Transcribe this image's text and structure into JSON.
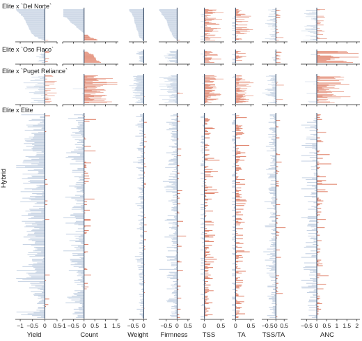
{
  "chart_data": {
    "type": "bar",
    "orientation": "horizontal",
    "ylabel": "Hybrid",
    "colors": {
      "negative": "#c5d2e3",
      "positive": "#e0826a",
      "zero_line": "#2a3f5c",
      "axis": "#222222"
    },
    "panels": [
      {
        "key": "del_norte",
        "label": "Elite x `Del Norte`",
        "n_rows": 60
      },
      {
        "key": "oso_flaco",
        "label": "Elite x `Oso Flaco`",
        "n_rows": 18
      },
      {
        "key": "puget",
        "label": "Elite x `Puget Reliance`",
        "n_rows": 50
      },
      {
        "key": "elite",
        "label": "Elite x Elite",
        "n_rows": 220
      }
    ],
    "traits": [
      {
        "name": "Yield",
        "xlim": [
          -1.2,
          0.5
        ],
        "ticks": [
          -1,
          -0.5,
          0,
          0.5
        ],
        "tick_labels": [
          "−1",
          "−0.5",
          "0",
          "0.5"
        ]
      },
      {
        "name": "Count",
        "xlim": [
          -1.0,
          1.6
        ],
        "ticks": [
          -1,
          -0.5,
          0,
          0.5,
          1,
          1.5
        ],
        "tick_labels": [
          "−1",
          "−0.5",
          "0",
          "0.5",
          "1",
          "1.5"
        ]
      },
      {
        "name": "Weight",
        "xlim": [
          -0.7,
          0.15
        ],
        "ticks": [
          -0.5,
          0
        ],
        "tick_labels": [
          "−0.5",
          "0"
        ]
      },
      {
        "name": "Firmness",
        "xlim": [
          -0.85,
          0.6
        ],
        "ticks": [
          -0.5,
          0,
          0.5
        ],
        "tick_labels": [
          "−0.5",
          "0",
          "0.5"
        ]
      },
      {
        "name": "TSS",
        "xlim": [
          -0.12,
          0.6
        ],
        "ticks": [
          0,
          0.5
        ],
        "tick_labels": [
          "0",
          "0.5"
        ]
      },
      {
        "name": "TA",
        "xlim": [
          -0.12,
          0.6
        ],
        "ticks": [
          0,
          0.5
        ],
        "tick_labels": [
          "0",
          "0.5"
        ]
      },
      {
        "name": "TSS/TA",
        "xlim": [
          -0.85,
          0.7
        ],
        "ticks": [
          -0.5,
          0,
          0.5
        ],
        "tick_labels": [
          "−0.5",
          "0",
          "0.5"
        ]
      },
      {
        "name": "ANC",
        "xlim": [
          -0.8,
          2.15
        ],
        "ticks": [
          -0.5,
          0,
          0.5,
          1,
          1.5,
          2
        ],
        "tick_labels": [
          "−0.5",
          "0",
          "0.5",
          "1",
          "1.5",
          "2"
        ]
      }
    ],
    "profiles": {
      "del_norte": [
        {
          "mean": -0.75,
          "sd": 0.3,
          "sort": true
        },
        {
          "mean": -0.5,
          "sd": 0.55,
          "sort": true,
          "skew": 0.55
        },
        {
          "mean": -0.4,
          "sd": 0.15,
          "sort": true
        },
        {
          "mean": -0.45,
          "sd": 0.22,
          "sort": true
        },
        {
          "mean": 0.22,
          "sd": 0.2
        },
        {
          "mean": 0.12,
          "sd": 0.22
        },
        {
          "mean": -0.05,
          "sd": 0.3
        },
        {
          "mean": -0.2,
          "sd": 0.3
        }
      ],
      "oso_flaco": [
        {
          "mean": -0.05,
          "sd": 0.15
        },
        {
          "mean": 0.3,
          "sd": 0.35,
          "sort": true,
          "skew": 0.3
        },
        {
          "mean": -0.2,
          "sd": 0.1
        },
        {
          "mean": -0.25,
          "sd": 0.15
        },
        {
          "mean": 0.15,
          "sd": 0.15
        },
        {
          "mean": 0.05,
          "sd": 0.15
        },
        {
          "mean": 0.05,
          "sd": 0.2
        },
        {
          "mean": 0.9,
          "sd": 0.6
        }
      ],
      "puget": [
        {
          "mean": -0.15,
          "sd": 0.4
        },
        {
          "mean": 0.55,
          "sd": 0.45
        },
        {
          "mean": -0.35,
          "sd": 0.15
        },
        {
          "mean": -0.3,
          "sd": 0.25
        },
        {
          "mean": 0.18,
          "sd": 0.18
        },
        {
          "mean": 0.18,
          "sd": 0.18
        },
        {
          "mean": -0.2,
          "sd": 0.3
        },
        {
          "mean": 0.5,
          "sd": 0.45
        }
      ],
      "elite": [
        {
          "mean": -0.45,
          "sd": 0.3
        },
        {
          "mean": -0.3,
          "sd": 0.3
        },
        {
          "mean": -0.1,
          "sd": 0.12
        },
        {
          "mean": -0.15,
          "sd": 0.2
        },
        {
          "mean": 0.05,
          "sd": 0.15
        },
        {
          "mean": 0.05,
          "sd": 0.15
        },
        {
          "mean": -0.2,
          "sd": 0.22
        },
        {
          "mean": -0.15,
          "sd": 0.35
        }
      ]
    }
  }
}
